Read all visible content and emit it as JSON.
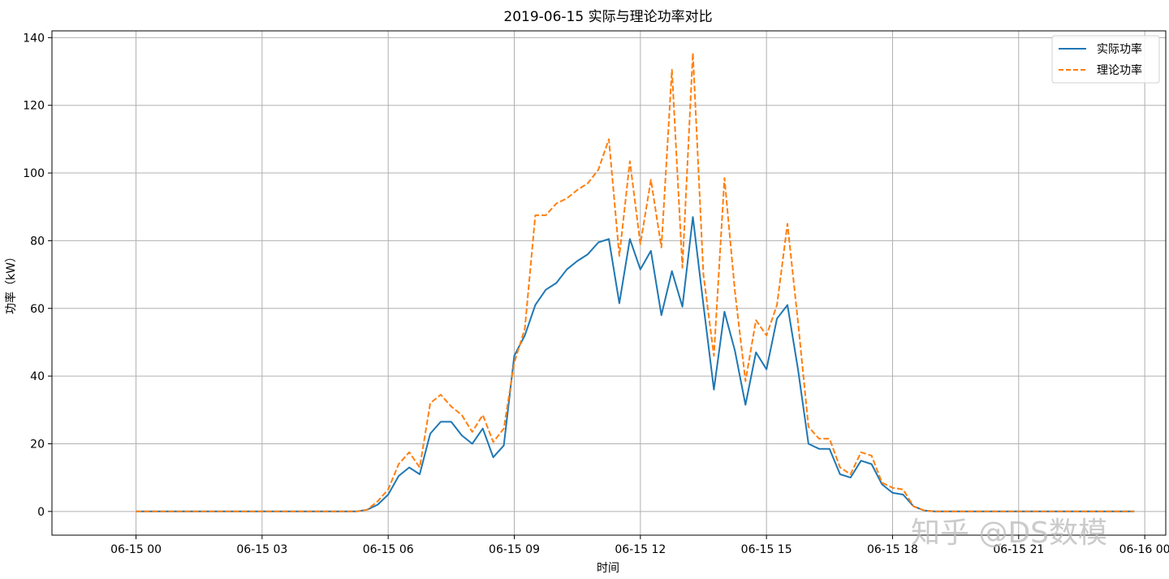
{
  "chart_data": {
    "type": "line",
    "title": "2019-06-15 实际与理论功率对比",
    "xlabel": "时间",
    "ylabel": "功率（kW）",
    "xlim_hours": [
      -2.0,
      24.5
    ],
    "ylim": [
      -7,
      142
    ],
    "x_ticks": [
      {
        "value": 0,
        "label": "06-15 00"
      },
      {
        "value": 3,
        "label": "06-15 03"
      },
      {
        "value": 6,
        "label": "06-15 06"
      },
      {
        "value": 9,
        "label": "06-15 09"
      },
      {
        "value": 12,
        "label": "06-15 12"
      },
      {
        "value": 15,
        "label": "06-15 15"
      },
      {
        "value": 18,
        "label": "06-15 18"
      },
      {
        "value": 21,
        "label": "06-15 21"
      },
      {
        "value": 24,
        "label": "06-16 00"
      }
    ],
    "y_ticks": [
      0,
      20,
      40,
      60,
      80,
      100,
      120,
      140
    ],
    "grid": true,
    "legend_position": "top-right",
    "colors": {
      "actual": "#1f77b4",
      "theory": "#ff7f0e"
    },
    "series": [
      {
        "name": "实际功率",
        "style": "solid",
        "points": [
          [
            0,
            0
          ],
          [
            0.25,
            0
          ],
          [
            0.5,
            0
          ],
          [
            0.75,
            0
          ],
          [
            1,
            0
          ],
          [
            1.25,
            0
          ],
          [
            1.5,
            0
          ],
          [
            1.75,
            0
          ],
          [
            2,
            0
          ],
          [
            2.25,
            0
          ],
          [
            2.5,
            0
          ],
          [
            2.75,
            0
          ],
          [
            3,
            0
          ],
          [
            3.25,
            0
          ],
          [
            3.5,
            0
          ],
          [
            3.75,
            0
          ],
          [
            4,
            0
          ],
          [
            4.25,
            0
          ],
          [
            4.5,
            0
          ],
          [
            4.75,
            0
          ],
          [
            5,
            0
          ],
          [
            5.25,
            0
          ],
          [
            5.5,
            0.5
          ],
          [
            5.75,
            2
          ],
          [
            6,
            5
          ],
          [
            6.25,
            10.5
          ],
          [
            6.5,
            13
          ],
          [
            6.75,
            11
          ],
          [
            7,
            23
          ],
          [
            7.25,
            26.5
          ],
          [
            7.5,
            26.5
          ],
          [
            7.75,
            22.5
          ],
          [
            8,
            20
          ],
          [
            8.25,
            24.5
          ],
          [
            8.5,
            16
          ],
          [
            8.75,
            19.5
          ],
          [
            9,
            46
          ],
          [
            9.25,
            52
          ],
          [
            9.5,
            61
          ],
          [
            9.75,
            65.5
          ],
          [
            10,
            67.5
          ],
          [
            10.25,
            71.5
          ],
          [
            10.5,
            74
          ],
          [
            10.75,
            76
          ],
          [
            11,
            79.5
          ],
          [
            11.25,
            80.5
          ],
          [
            11.5,
            61.5
          ],
          [
            11.75,
            80.5
          ],
          [
            12,
            71.5
          ],
          [
            12.25,
            77
          ],
          [
            12.5,
            58
          ],
          [
            12.75,
            71
          ],
          [
            13,
            60.5
          ],
          [
            13.25,
            87
          ],
          [
            13.5,
            61
          ],
          [
            13.75,
            36
          ],
          [
            14,
            59
          ],
          [
            14.25,
            47.5
          ],
          [
            14.5,
            31.5
          ],
          [
            14.75,
            47
          ],
          [
            15,
            42
          ],
          [
            15.25,
            57
          ],
          [
            15.5,
            61
          ],
          [
            15.75,
            42
          ],
          [
            16,
            20
          ],
          [
            16.25,
            18.5
          ],
          [
            16.5,
            18.5
          ],
          [
            16.75,
            11
          ],
          [
            17,
            10
          ],
          [
            17.25,
            15
          ],
          [
            17.5,
            14
          ],
          [
            17.75,
            8
          ],
          [
            18,
            5.5
          ],
          [
            18.25,
            5
          ],
          [
            18.5,
            1.5
          ],
          [
            18.75,
            0.3
          ],
          [
            19,
            0
          ],
          [
            19.5,
            0
          ],
          [
            20,
            0
          ],
          [
            20.5,
            0
          ],
          [
            21,
            0
          ],
          [
            21.5,
            0
          ],
          [
            22,
            0
          ],
          [
            22.5,
            0
          ],
          [
            23,
            0
          ],
          [
            23.5,
            0
          ],
          [
            23.75,
            0
          ]
        ]
      },
      {
        "name": "理论功率",
        "style": "dashed",
        "points": [
          [
            0,
            0
          ],
          [
            0.25,
            0
          ],
          [
            0.5,
            0
          ],
          [
            0.75,
            0
          ],
          [
            1,
            0
          ],
          [
            1.25,
            0
          ],
          [
            1.5,
            0
          ],
          [
            1.75,
            0
          ],
          [
            2,
            0
          ],
          [
            2.25,
            0
          ],
          [
            2.5,
            0
          ],
          [
            2.75,
            0
          ],
          [
            3,
            0
          ],
          [
            3.25,
            0
          ],
          [
            3.5,
            0
          ],
          [
            3.75,
            0
          ],
          [
            4,
            0
          ],
          [
            4.25,
            0
          ],
          [
            4.5,
            0
          ],
          [
            4.75,
            0
          ],
          [
            5,
            0
          ],
          [
            5.25,
            0
          ],
          [
            5.5,
            0.5
          ],
          [
            5.75,
            3
          ],
          [
            6,
            6.5
          ],
          [
            6.25,
            14
          ],
          [
            6.5,
            17.5
          ],
          [
            6.75,
            13
          ],
          [
            7,
            32
          ],
          [
            7.25,
            34.5
          ],
          [
            7.5,
            31
          ],
          [
            7.75,
            28.5
          ],
          [
            8,
            23.5
          ],
          [
            8.25,
            28.5
          ],
          [
            8.5,
            20.5
          ],
          [
            8.75,
            24.5
          ],
          [
            9,
            44
          ],
          [
            9.25,
            54
          ],
          [
            9.5,
            87.5
          ],
          [
            9.75,
            87.5
          ],
          [
            10,
            91
          ],
          [
            10.25,
            92.5
          ],
          [
            10.5,
            95
          ],
          [
            10.75,
            97
          ],
          [
            11,
            101
          ],
          [
            11.25,
            110
          ],
          [
            11.5,
            75.5
          ],
          [
            11.75,
            103.5
          ],
          [
            12,
            79
          ],
          [
            12.25,
            98
          ],
          [
            12.5,
            78
          ],
          [
            12.75,
            130.5
          ],
          [
            13,
            72
          ],
          [
            13.25,
            135.5
          ],
          [
            13.5,
            70
          ],
          [
            13.75,
            46
          ],
          [
            14,
            98.5
          ],
          [
            14.25,
            65
          ],
          [
            14.5,
            38.5
          ],
          [
            14.75,
            56.5
          ],
          [
            15,
            52
          ],
          [
            15.25,
            61
          ],
          [
            15.5,
            85
          ],
          [
            15.75,
            56
          ],
          [
            16,
            25
          ],
          [
            16.25,
            21.5
          ],
          [
            16.5,
            21.5
          ],
          [
            16.75,
            13
          ],
          [
            17,
            11
          ],
          [
            17.25,
            17.5
          ],
          [
            17.5,
            16.5
          ],
          [
            17.75,
            8.5
          ],
          [
            18,
            7
          ],
          [
            18.25,
            6.5
          ],
          [
            18.5,
            1.5
          ],
          [
            18.75,
            0.3
          ],
          [
            19,
            0
          ],
          [
            19.5,
            0
          ],
          [
            20,
            0
          ],
          [
            20.5,
            0
          ],
          [
            21,
            0
          ],
          [
            21.5,
            0
          ],
          [
            22,
            0
          ],
          [
            22.5,
            0
          ],
          [
            23,
            0
          ],
          [
            23.5,
            0
          ],
          [
            23.75,
            0
          ]
        ]
      }
    ]
  },
  "watermark": "知乎 @DS数模"
}
